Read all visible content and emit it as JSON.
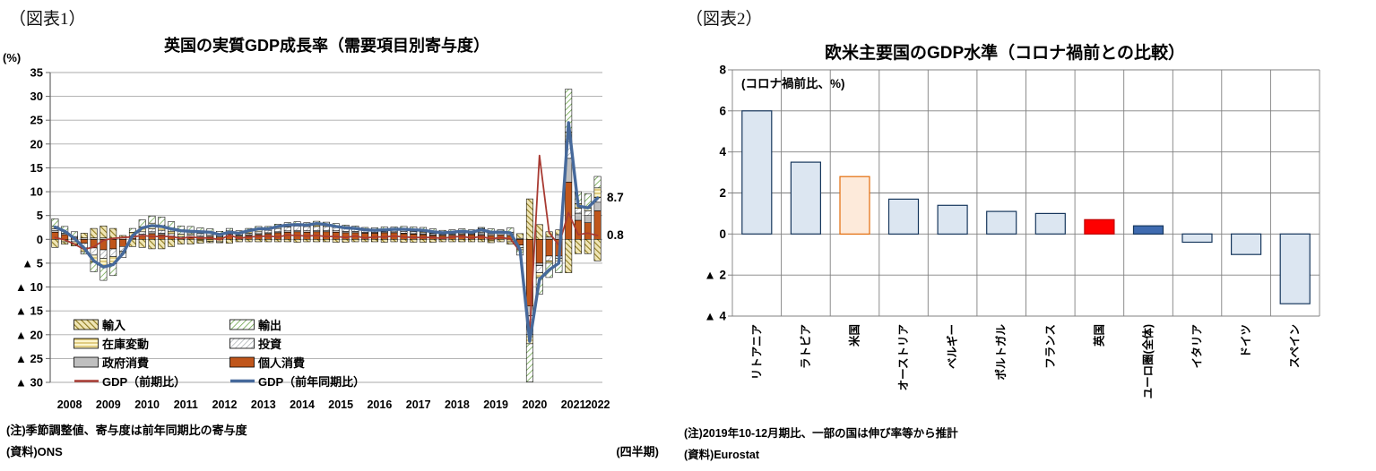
{
  "fig1": {
    "tag": "（図表1）",
    "title": "英国の実質GDP成長率（需要項目別寄与度）",
    "unit_label": "(%)",
    "note": "(注)季節調整値、寄与度は前年同期比の寄与度",
    "source": "(資料)ONS",
    "freq_label": "(四半期)",
    "end_labels": {
      "yoy": "8.7",
      "qoq": "0.8"
    },
    "legend": [
      {
        "key": "imports",
        "label": "輸入"
      },
      {
        "key": "exports",
        "label": "輸出"
      },
      {
        "key": "inventory",
        "label": "在庫変動"
      },
      {
        "key": "investment",
        "label": "投資"
      },
      {
        "key": "government",
        "label": "政府消費"
      },
      {
        "key": "personal",
        "label": "個人消費"
      },
      {
        "key": "qoq",
        "label": "GDP（前期比）"
      },
      {
        "key": "yoy",
        "label": "GDP（前年同期比）"
      }
    ],
    "chart_data": {
      "type": "stacked-bar+line combo",
      "x_frequency": "quarterly 2008Q1-2022Q1",
      "years": [
        "2008",
        "2009",
        "2010",
        "2011",
        "2012",
        "2013",
        "2014",
        "2015",
        "2016",
        "2017",
        "2018",
        "2019",
        "2020",
        "2021",
        "2022"
      ],
      "ylim": [
        -30,
        35
      ],
      "yticks": [
        35,
        30,
        25,
        20,
        15,
        10,
        5,
        0,
        -5,
        -10,
        -15,
        -20,
        -25,
        -30
      ],
      "neg_prefix": "▲ ",
      "stack_order": [
        "personal",
        "government",
        "investment",
        "inventory",
        "exports",
        "imports"
      ],
      "series": [
        {
          "key": "personal",
          "name": "個人消費",
          "color": "#c0561b",
          "values": [
            1.5,
            1.0,
            0.3,
            -0.8,
            -1.8,
            -2.2,
            -2.0,
            -1.5,
            0.2,
            0.8,
            1.2,
            1.0,
            0.5,
            0.2,
            0.3,
            0.5,
            0.6,
            0.5,
            0.8,
            0.7,
            0.8,
            1.0,
            1.2,
            1.4,
            1.5,
            1.6,
            1.5,
            1.6,
            1.6,
            1.5,
            1.4,
            1.4,
            1.3,
            1.3,
            1.4,
            1.4,
            1.2,
            1.1,
            1.0,
            0.8,
            0.8,
            0.9,
            1.0,
            1.0,
            0.9,
            0.8,
            0.9,
            0.8,
            -1.2,
            -14.0,
            -5.0,
            -3.5,
            -3.5,
            12.0,
            4.0,
            3.5,
            6.0
          ]
        },
        {
          "key": "government",
          "name": "政府消費",
          "color": "#bfbfbf",
          "values": [
            0.4,
            0.3,
            0.3,
            0.3,
            0.3,
            0.3,
            0.3,
            0.3,
            0.3,
            0.3,
            0.4,
            0.3,
            0.2,
            0.1,
            0.2,
            0.2,
            0.3,
            0.3,
            0.3,
            0.2,
            0.2,
            0.2,
            0.2,
            0.2,
            0.3,
            0.3,
            0.3,
            0.3,
            0.3,
            0.3,
            0.3,
            0.3,
            0.2,
            0.2,
            0.2,
            0.2,
            0.1,
            0.1,
            0.1,
            0.1,
            0.1,
            0.2,
            0.2,
            0.2,
            0.3,
            0.4,
            0.4,
            0.4,
            0.2,
            -2.0,
            -0.5,
            0.5,
            1.0,
            5.0,
            1.5,
            1.5,
            1.8
          ]
        },
        {
          "key": "investment",
          "name": "投資",
          "pattern": "gray diagonal hatch",
          "color": "#a3a9ad",
          "values": [
            0.3,
            0.0,
            -0.5,
            -1.0,
            -1.5,
            -1.8,
            -1.6,
            -1.0,
            0.2,
            0.5,
            0.6,
            0.6,
            0.5,
            0.3,
            0.4,
            0.5,
            0.5,
            0.4,
            0.4,
            0.3,
            0.3,
            0.4,
            0.5,
            0.7,
            0.8,
            0.9,
            0.9,
            0.8,
            0.8,
            0.7,
            0.6,
            0.6,
            0.4,
            0.3,
            0.3,
            0.3,
            0.4,
            0.4,
            0.3,
            0.3,
            0.2,
            0.2,
            0.3,
            0.2,
            0.3,
            0.2,
            0.2,
            0.3,
            -0.5,
            -4.0,
            -1.5,
            -1.0,
            -0.5,
            3.5,
            1.0,
            1.0,
            1.0
          ]
        },
        {
          "key": "inventory",
          "name": "在庫変動",
          "pattern": "pale yellow horizontal lines",
          "color": "#c9ac45",
          "values": [
            0.5,
            -0.5,
            -0.5,
            -0.8,
            -1.5,
            -1.8,
            -1.5,
            -0.3,
            0.8,
            1.0,
            1.2,
            1.0,
            0.5,
            0.5,
            0.3,
            -0.3,
            -0.4,
            -0.5,
            0.3,
            0.3,
            0.5,
            0.4,
            0.5,
            0.3,
            0.4,
            0.4,
            0.5,
            0.4,
            0.5,
            0.3,
            0.4,
            0.2,
            0.3,
            0.2,
            0.2,
            0.1,
            0.2,
            0.2,
            0.2,
            0.1,
            0.3,
            0.2,
            0.4,
            0.3,
            0.8,
            -0.3,
            0.3,
            -0.5,
            -0.5,
            -1.9,
            -1.0,
            -0.5,
            -0.5,
            2.0,
            1.0,
            0.5,
            2.0
          ]
        },
        {
          "key": "exports",
          "name": "輸出",
          "pattern": "green diagonal hatch",
          "color": "#79ad5a",
          "values": [
            1.6,
            1.4,
            1.0,
            -0.5,
            -2.0,
            -2.8,
            -2.5,
            -1.0,
            0.8,
            1.5,
            1.5,
            1.8,
            2.0,
            1.7,
            1.5,
            1.2,
            0.8,
            0.5,
            0.5,
            0.3,
            0.5,
            0.7,
            0.3,
            0.6,
            0.5,
            0.5,
            0.3,
            0.7,
            0.4,
            0.5,
            0.3,
            0.3,
            0.3,
            0.4,
            0.5,
            0.6,
            0.8,
            0.8,
            0.9,
            0.9,
            0.5,
            0.5,
            0.3,
            0.3,
            0.2,
            0.8,
            0.2,
            0.9,
            -1.1,
            -8.0,
            -3.5,
            -3.0,
            -2.5,
            9.0,
            2.5,
            3.1,
            2.4
          ]
        },
        {
          "key": "imports",
          "name": "輸入",
          "pattern": "olive diagonal hatch",
          "color": "#8e7a1f",
          "values": [
            -1.7,
            -0.5,
            -0.4,
            1.0,
            2.0,
            2.5,
            2.0,
            0.5,
            -1.5,
            -1.7,
            -2.0,
            -2.0,
            -1.5,
            -1.0,
            -1.0,
            -0.5,
            -0.3,
            -0.2,
            -0.8,
            -0.5,
            -0.5,
            -0.5,
            -0.5,
            -0.5,
            -0.5,
            -0.6,
            -0.5,
            -0.5,
            -0.5,
            -0.6,
            -0.6,
            -0.5,
            -0.5,
            -0.5,
            -0.6,
            -0.5,
            -0.6,
            -0.6,
            -0.6,
            -0.6,
            -0.5,
            -0.5,
            -0.5,
            -0.5,
            -0.5,
            -0.4,
            -0.5,
            -0.5,
            1.0,
            8.5,
            3.1,
            1.1,
            1.0,
            -7.0,
            -3.0,
            -3.0,
            -4.5
          ]
        }
      ],
      "lines": [
        {
          "key": "qoq",
          "name": "GDP（前期比）",
          "color": "#a83a32",
          "width": 1.8,
          "values": [
            0.4,
            -0.1,
            -1.0,
            -2.1,
            -1.6,
            -0.2,
            0.2,
            0.4,
            0.5,
            0.8,
            0.6,
            0.6,
            0.6,
            0.2,
            0.5,
            0.3,
            0.3,
            -0.1,
            0.9,
            0.2,
            0.5,
            0.6,
            0.7,
            0.5,
            0.9,
            0.8,
            0.7,
            0.8,
            0.6,
            0.6,
            0.4,
            0.7,
            0.3,
            0.5,
            0.5,
            0.7,
            0.5,
            0.4,
            0.4,
            0.4,
            0.2,
            0.5,
            0.6,
            0.3,
            0.6,
            0.1,
            0.4,
            0.1,
            -2.5,
            -19.4,
            17.6,
            1.4,
            -1.2,
            5.6,
            1.0,
            1.3,
            0.8
          ]
        },
        {
          "key": "yoy",
          "name": "GDP（前年同期比）",
          "color": "#46699b",
          "width": 3.4,
          "values": [
            2.6,
            1.7,
            0.2,
            -1.8,
            -4.5,
            -5.8,
            -5.3,
            -3.0,
            0.8,
            2.4,
            2.9,
            2.7,
            2.2,
            1.8,
            1.7,
            1.6,
            1.5,
            1.0,
            1.5,
            1.3,
            1.8,
            2.2,
            2.2,
            2.7,
            3.0,
            3.1,
            3.0,
            3.3,
            3.1,
            2.7,
            2.4,
            2.3,
            2.0,
            1.9,
            2.0,
            2.1,
            2.1,
            2.0,
            1.9,
            1.6,
            1.4,
            1.5,
            1.7,
            1.5,
            2.0,
            1.5,
            1.5,
            1.4,
            -2.1,
            -21.4,
            -8.4,
            -6.4,
            -5.0,
            24.5,
            7.0,
            6.6,
            8.7
          ]
        }
      ]
    }
  },
  "fig2": {
    "tag": "（図表2）",
    "title": "欧米主要国のGDP水準（コロナ禍前との比較）",
    "annotation": "(コロナ禍前比、%)",
    "note": "(注)2019年10-12月期比、一部の国は伸び率等から推計",
    "source": "(資料)Eurostat",
    "chart_data": {
      "type": "bar",
      "categories": [
        "リトアニア",
        "ラトビア",
        "米国",
        "オーストリア",
        "ベルギー",
        "ポルトガル",
        "フランス",
        "英国",
        "ユーロ圏(全体)",
        "イタリア",
        "ドイツ",
        "スペイン"
      ],
      "values": [
        6.0,
        3.5,
        2.8,
        1.7,
        1.4,
        1.1,
        1.0,
        0.7,
        0.4,
        -0.4,
        -1.0,
        -3.4
      ],
      "ylim": [
        -4,
        8
      ],
      "yticks": [
        8,
        6,
        4,
        2,
        0,
        -2,
        -4
      ],
      "neg_prefix": "▲ ",
      "grid": "horizontal and vertical, gray",
      "default_bar": {
        "fill": "#dce6f1",
        "stroke": "#17375d"
      },
      "highlight_bars": {
        "米国": {
          "fill": "#fdeada",
          "stroke": "#e36c0a"
        },
        "英国": {
          "fill": "#fe0000",
          "stroke": "#c00000"
        },
        "ユーロ圏(全体)": {
          "fill": "#3f6bb0",
          "stroke": "#17375d"
        }
      }
    }
  }
}
